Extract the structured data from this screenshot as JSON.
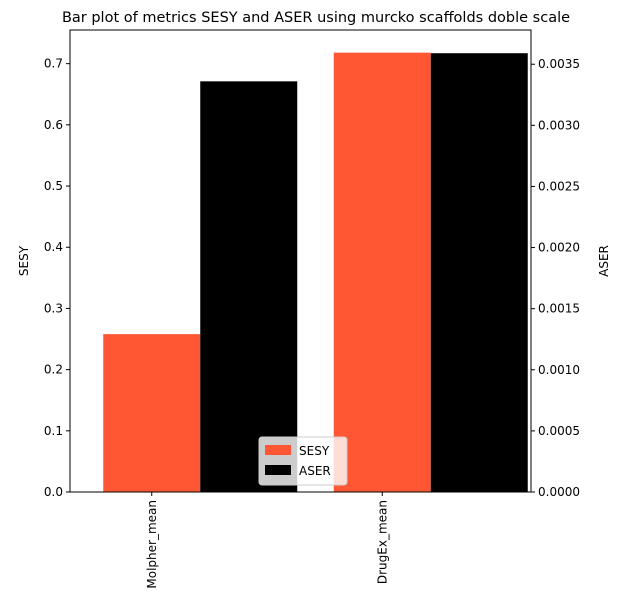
{
  "chart_data": {
    "type": "bar",
    "title": "Bar plot of metrics SESY and ASER using murcko scaffolds doble scale",
    "categories": [
      "Molpher_mean",
      "DrugEx_mean"
    ],
    "series": [
      {
        "name": "SESY",
        "axis": "left",
        "color": "#ff5733",
        "values": [
          0.258,
          0.718
        ]
      },
      {
        "name": "ASER",
        "axis": "right",
        "color": "#000000",
        "values": [
          0.00336,
          0.00359
        ]
      }
    ],
    "ylabel": "SESY",
    "ylabel_right": "ASER",
    "ylim": [
      0,
      0.755
    ],
    "ylim_right": [
      0,
      0.00378
    ],
    "yticks": [
      "0.0",
      "0.1",
      "0.2",
      "0.3",
      "0.4",
      "0.5",
      "0.6",
      "0.7"
    ],
    "yticks_right": [
      "0.0000",
      "0.0005",
      "0.0010",
      "0.0015",
      "0.0020",
      "0.0025",
      "0.0030",
      "0.0035"
    ],
    "grid": false,
    "legend_position": "bottom-center",
    "xtick_rotation": "vertical"
  }
}
